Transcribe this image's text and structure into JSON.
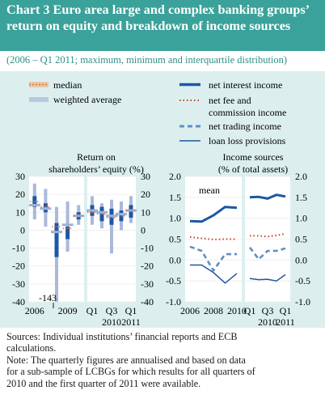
{
  "title": "Chart 3 Euro area large and complex banking groups’ return on equity and breakdown of income sources",
  "subtitle": "(2006 – Q1 2011; maximum, minimum and interquartile distribution)",
  "colors": {
    "title_bg": "#3aa29a",
    "panel_bg": "#dcefee",
    "plot_bg": "#ffffff",
    "range_bar": "#a9b9da",
    "box": "#1c57a6",
    "median": "#e07b52",
    "weighted_avg": "#9bb4d6",
    "net_interest": "#1c57a6",
    "net_fee": "#c8411f",
    "net_trading": "#5d90c4",
    "loan_loss": "#1c57a6"
  },
  "legend": {
    "left": [
      {
        "label": "median",
        "icon": "median-swatch"
      },
      {
        "label": "weighted average",
        "icon": "weighted-average-swatch"
      }
    ],
    "right": [
      {
        "label": "net interest income",
        "icon": "solid-thick-line"
      },
      {
        "label": "net fee and",
        "label2": "commission income",
        "icon": "dotted-line"
      },
      {
        "label": "net trading income",
        "icon": "dashed-line"
      },
      {
        "label": "loan loss provisions",
        "icon": "solid-thin-line"
      }
    ]
  },
  "chart_data": [
    {
      "type": "box",
      "title_line1": "Return on",
      "title_line2": "shareholders’ equity (%)",
      "ylim": [
        -40,
        30
      ],
      "yticks": [
        "30",
        "20",
        "10",
        "0",
        "-10",
        "-20",
        "-30",
        "-40"
      ],
      "annual": {
        "categories": [
          "2006",
          "2007",
          "2008",
          "2009",
          "2010"
        ],
        "min": [
          6,
          2,
          -40,
          -12,
          3
        ],
        "q1": [
          13,
          10,
          -15,
          -5,
          6
        ],
        "q3": [
          19,
          15,
          4,
          2,
          10
        ],
        "max": [
          26,
          23,
          13,
          16,
          14
        ],
        "median": [
          16,
          13,
          2,
          1,
          8
        ],
        "weighted_average": [
          14,
          12,
          -1,
          3,
          8
        ],
        "tick_labels": [
          {
            "label": "2006",
            "at": "2006"
          },
          {
            "label": "2009",
            "at": "2009"
          }
        ]
      },
      "quarterly": {
        "categories": [
          "Q1 2010",
          "Q2 2010",
          "Q3 2010",
          "Q4 2010",
          "Q1 2011"
        ],
        "min": [
          3,
          1,
          -13,
          0,
          4
        ],
        "q1": [
          8,
          5,
          3,
          5,
          7
        ],
        "q3": [
          14,
          13,
          12,
          11,
          14
        ],
        "max": [
          19,
          15,
          17,
          16,
          19
        ],
        "median": [
          10,
          9,
          7,
          8,
          11
        ],
        "weighted_average": [
          11,
          10,
          8,
          9,
          11
        ],
        "tick_labels": [
          "Q1",
          "Q3",
          "Q1"
        ],
        "year_labels": [
          "2010",
          "2011"
        ]
      },
      "annotation": "-143"
    },
    {
      "type": "line",
      "title_line1": "Income sources",
      "title_line2": "(% of total assets)",
      "ylim": [
        -1.0,
        2.0
      ],
      "yticks": [
        "2.0",
        "1.5",
        "1.0",
        "0.5",
        "0.0",
        "-0.5",
        "-1.0"
      ],
      "annotation": "mean",
      "annual": {
        "x": [
          "2006",
          "2007",
          "2008",
          "2009",
          "2010"
        ],
        "tick_labels": [
          "2006",
          "2008",
          "2010"
        ],
        "series": [
          {
            "name": "net interest income",
            "values": [
              0.93,
              0.92,
              1.07,
              1.27,
              1.25
            ]
          },
          {
            "name": "net fee and commission income",
            "values": [
              0.55,
              0.52,
              0.49,
              0.5,
              0.5
            ]
          },
          {
            "name": "net trading income",
            "values": [
              0.32,
              0.22,
              -0.25,
              0.14,
              0.14
            ]
          },
          {
            "name": "loan loss provisions",
            "values": [
              -0.12,
              -0.12,
              -0.3,
              -0.55,
              -0.32
            ]
          }
        ]
      },
      "quarterly": {
        "x": [
          "Q1 2010",
          "Q2 2010",
          "Q3 2010",
          "Q4 2010",
          "Q1 2011"
        ],
        "tick_labels": [
          "Q1",
          "Q3",
          "Q1"
        ],
        "year_labels": [
          "2010",
          "2011"
        ],
        "series": [
          {
            "name": "net interest income",
            "values": [
              1.5,
              1.51,
              1.47,
              1.56,
              1.52
            ]
          },
          {
            "name": "net fee and commission income",
            "values": [
              0.58,
              0.58,
              0.56,
              0.59,
              0.63
            ]
          },
          {
            "name": "net trading income",
            "values": [
              0.3,
              0.02,
              0.22,
              0.22,
              0.28
            ]
          },
          {
            "name": "loan loss provisions",
            "values": [
              -0.44,
              -0.47,
              -0.46,
              -0.5,
              -0.35
            ]
          }
        ]
      }
    }
  ],
  "sources": {
    "line1": "Sources: Individual institutions’ financial reports and ECB",
    "line2": "calculations.",
    "line3": "Note: The quarterly figures are annualised and based on data",
    "line4": "for a sub-sample of LCBGs for which results for all quarters of",
    "line5": "2010 and the first quarter of 2011 were available."
  }
}
